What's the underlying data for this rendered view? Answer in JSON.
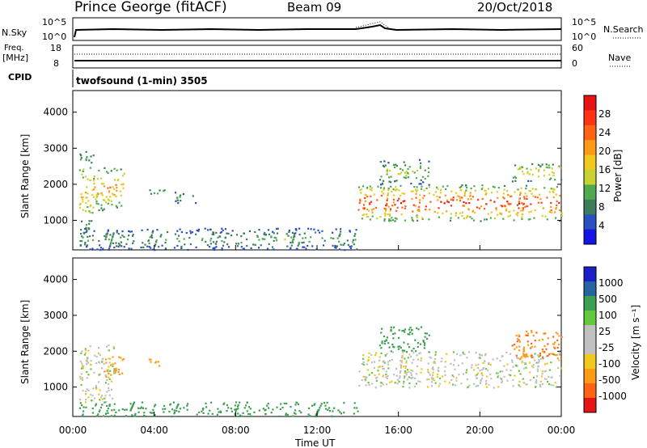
{
  "header": {
    "site": "Prince George (fitACF)",
    "beam": "Beam 09",
    "date": "20/Oct/2018"
  },
  "noise_panel": {
    "left_label": "N.Sky",
    "left_ticks": [
      "10^5",
      "10^0"
    ],
    "right_label": "N.Search",
    "right_ticks": [
      "10^5",
      "10^0"
    ]
  },
  "freq_panel": {
    "left_label_1": "Freq.",
    "left_label_2": "[MHz]",
    "left_ticks": [
      "18",
      "8"
    ],
    "right_label": "Nave",
    "right_ticks": [
      "60",
      "0"
    ]
  },
  "cpid": {
    "label": "CPID",
    "value": "twofsound (1-min) 3505"
  },
  "power_panel": {
    "ylabel": "Slant Range [km]",
    "yticks": [
      "4000",
      "3000",
      "2000",
      "1000"
    ],
    "colorbar_label": "Power [dB]",
    "colorbar_ticks": [
      "28",
      "24",
      "20",
      "16",
      "12",
      "8",
      "4"
    ],
    "colors": [
      "#1414e6",
      "#2a4fbf",
      "#3c7d5a",
      "#4faa4f",
      "#c8d232",
      "#f0c81e",
      "#ff9a14",
      "#ff6414",
      "#ff3214",
      "#e61414"
    ]
  },
  "velocity_panel": {
    "ylabel": "Slant Range [km]",
    "yticks": [
      "4000",
      "3000",
      "2000",
      "1000"
    ],
    "colorbar_label": "Velocity [m s⁻¹]",
    "colorbar_ticks": [
      "1000",
      "500",
      "100",
      "25",
      "-25",
      "-100",
      "-500",
      "-1000"
    ],
    "colors": [
      "#1e1ec8",
      "#2864a0",
      "#3ca050",
      "#64c83c",
      "#c0c0c0",
      "#c0c0c0",
      "#f0c81e",
      "#ff9a14",
      "#ff6414",
      "#e61414"
    ]
  },
  "xaxis": {
    "ticks": [
      "00:00",
      "04:00",
      "08:00",
      "12:00",
      "16:00",
      "20:00",
      "00:00"
    ],
    "label": "Time UT"
  },
  "chart_data": {
    "type": "heatmap",
    "title": "Prince George (fitACF)",
    "xlabel": "Time UT",
    "ylabel": "Slant Range [km]",
    "xlim_hours": [
      0,
      24
    ],
    "ylim_km": [
      180,
      4600
    ],
    "power_regions": [
      {
        "t0": 0.3,
        "t1": 1.0,
        "r0": 600,
        "r1": 3000,
        "peak_db": 20
      },
      {
        "t0": 1.0,
        "t1": 2.5,
        "r0": 1300,
        "r1": 2500,
        "peak_db": 24
      },
      {
        "t0": 3.6,
        "t1": 4.5,
        "r0": 1700,
        "r1": 1900,
        "peak_db": 14
      },
      {
        "t0": 5.0,
        "t1": 6.0,
        "r0": 1500,
        "r1": 1800,
        "peak_db": 12
      },
      {
        "t0": 0.3,
        "t1": 14.0,
        "r0": 200,
        "r1": 800,
        "peak_db": 12
      },
      {
        "t0": 14.0,
        "t1": 24.0,
        "r0": 1000,
        "r1": 2000,
        "peak_db": 30
      },
      {
        "t0": 15.0,
        "t1": 17.5,
        "r0": 2000,
        "r1": 2700,
        "peak_db": 16
      },
      {
        "t0": 21.5,
        "t1": 24.0,
        "r0": 2100,
        "r1": 2600,
        "peak_db": 20
      }
    ],
    "velocity_regions": [
      {
        "t0": 0.3,
        "t1": 2.0,
        "r0": 600,
        "r1": 2200,
        "velocity": 0
      },
      {
        "t0": 1.5,
        "t1": 2.5,
        "r0": 1300,
        "r1": 1900,
        "velocity": -200
      },
      {
        "t0": 3.7,
        "t1": 4.3,
        "r0": 1600,
        "r1": 1900,
        "velocity": -200
      },
      {
        "t0": 0.3,
        "t1": 14.0,
        "r0": 200,
        "r1": 600,
        "velocity": 100
      },
      {
        "t0": 14.0,
        "t1": 24.0,
        "r0": 1000,
        "r1": 2000,
        "velocity": 0
      },
      {
        "t0": 15.0,
        "t1": 17.5,
        "r0": 2000,
        "r1": 2700,
        "velocity": 150
      },
      {
        "t0": 21.5,
        "t1": 24.0,
        "r0": 1800,
        "r1": 2600,
        "velocity": -300
      }
    ]
  }
}
